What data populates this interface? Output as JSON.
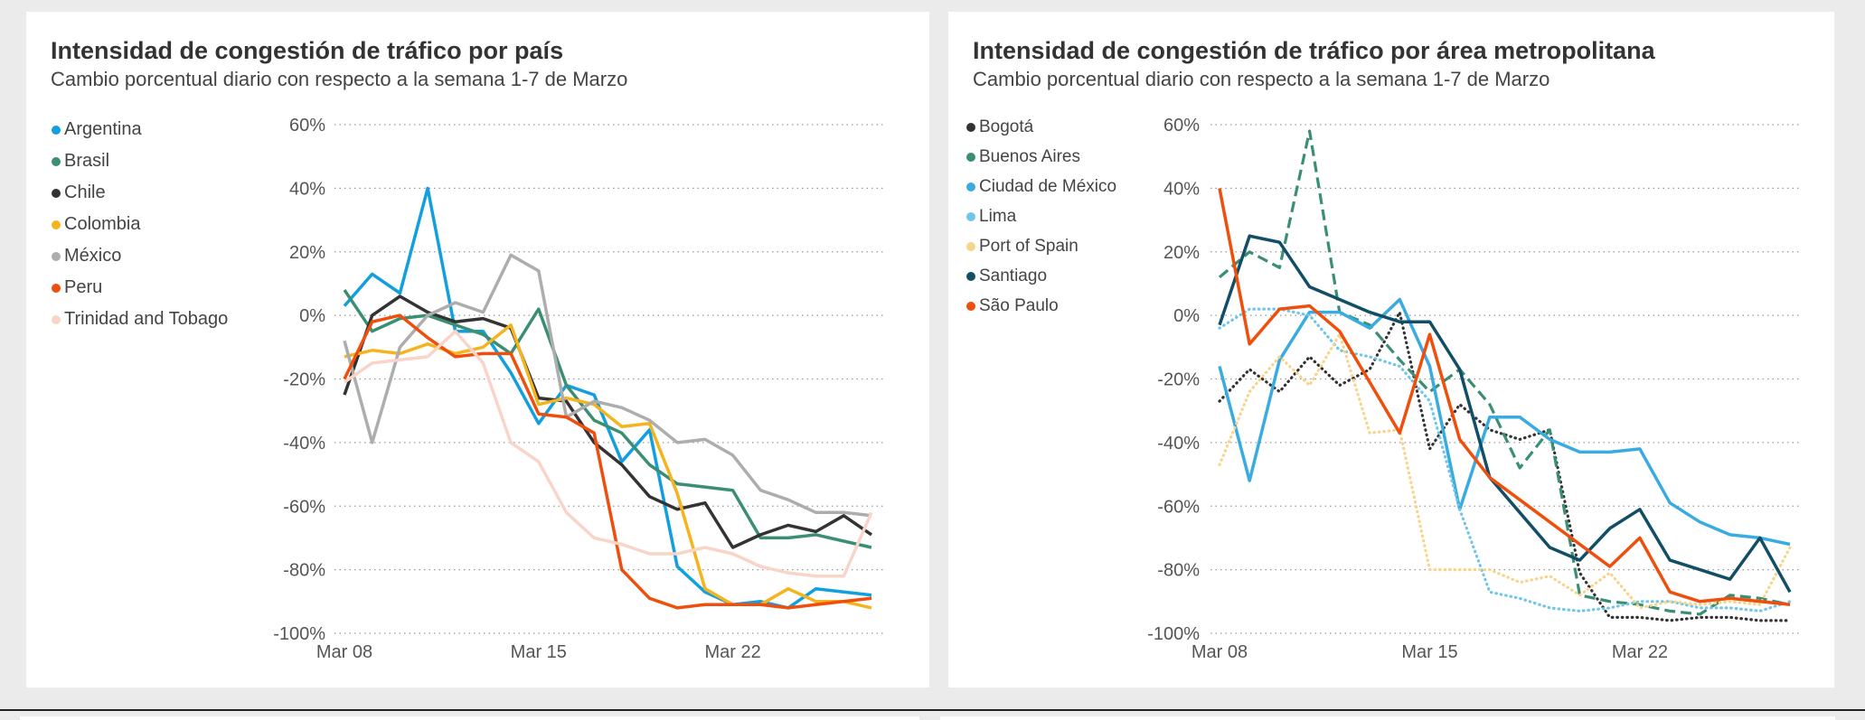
{
  "chart_data": [
    {
      "type": "line",
      "title": "Intensidad de congestión de tráfico por país",
      "subtitle": "Cambio porcentual diario con respecto a la semana 1-7 de Marzo",
      "x": [
        "Mar 08",
        "Mar 09",
        "Mar 10",
        "Mar 11",
        "Mar 12",
        "Mar 13",
        "Mar 14",
        "Mar 15",
        "Mar 16",
        "Mar 17",
        "Mar 18",
        "Mar 19",
        "Mar 20",
        "Mar 21",
        "Mar 22",
        "Mar 23",
        "Mar 24",
        "Mar 25",
        "Mar 26",
        "Mar 27"
      ],
      "x_ticks": [
        "Mar 08",
        "Mar 15",
        "Mar 22"
      ],
      "y_ticks": [
        "60%",
        "40%",
        "20%",
        "0%",
        "-20%",
        "-40%",
        "-60%",
        "-80%",
        "-100%"
      ],
      "ylim": [
        -100,
        60
      ],
      "grid": "horizontal dotted",
      "legend": "left",
      "series": [
        {
          "name": "Argentina",
          "color": "#129fe0",
          "style": "solid",
          "values": [
            3,
            13,
            7,
            40,
            -5,
            -5,
            -18,
            -34,
            -22,
            -25,
            -46,
            -36,
            -79,
            -87,
            -91,
            -90,
            -92,
            -86,
            -87,
            -88
          ]
        },
        {
          "name": "Brasil",
          "color": "#3a8f73",
          "style": "solid",
          "values": [
            8,
            -5,
            -1,
            0,
            -3,
            -6,
            -12,
            2,
            -22,
            -33,
            -37,
            -47,
            -53,
            -54,
            -55,
            -70,
            -70,
            -69,
            -71,
            -73
          ]
        },
        {
          "name": "Chile",
          "color": "#333333",
          "style": "solid",
          "values": [
            -25,
            0,
            6,
            1,
            -2,
            -1,
            -4,
            -26,
            -27,
            -40,
            -47,
            -57,
            -61,
            -59,
            -73,
            -69,
            -66,
            -68,
            -63,
            -69
          ]
        },
        {
          "name": "Colombia",
          "color": "#f5b41e",
          "style": "solid",
          "values": [
            -13,
            -11,
            -12,
            -9,
            -12,
            -10,
            -3,
            -28,
            -26,
            -28,
            -35,
            -34,
            -56,
            -86,
            -91,
            -91,
            -86,
            -90,
            -90,
            -92
          ]
        },
        {
          "name": "México",
          "color": "#adadad",
          "style": "solid",
          "values": [
            -8,
            -40,
            -10,
            0,
            4,
            1,
            19,
            14,
            -32,
            -27,
            -29,
            -33,
            -40,
            -39,
            -44,
            -55,
            -58,
            -62,
            -62,
            -63
          ]
        },
        {
          "name": "Peru",
          "color": "#f04e0c",
          "style": "solid",
          "values": [
            -20,
            -2,
            0,
            -7,
            -13,
            -12,
            -12,
            -31,
            -32,
            -37,
            -80,
            -89,
            -92,
            -91,
            -91,
            -91,
            -92,
            -91,
            -90,
            -89
          ]
        },
        {
          "name": "Trinidad and Tobago",
          "color": "#f9d4c8",
          "style": "solid",
          "values": [
            -21,
            -15,
            -14,
            -13,
            -5,
            -15,
            -40,
            -46,
            -62,
            -70,
            -72,
            -75,
            -75,
            -73,
            -75,
            -79,
            -81,
            -82,
            -82,
            -62
          ]
        }
      ]
    },
    {
      "type": "line",
      "title": "Intensidad de congestión de tráfico por área metropolitana",
      "subtitle": "Cambio porcentual diario con respecto a la semana 1-7 de Marzo",
      "x": [
        "Mar 08",
        "Mar 09",
        "Mar 10",
        "Mar 11",
        "Mar 12",
        "Mar 13",
        "Mar 14",
        "Mar 15",
        "Mar 16",
        "Mar 17",
        "Mar 18",
        "Mar 19",
        "Mar 20",
        "Mar 21",
        "Mar 22",
        "Mar 23",
        "Mar 24",
        "Mar 25",
        "Mar 26",
        "Mar 27"
      ],
      "x_ticks": [
        "Mar 08",
        "Mar 15",
        "Mar 22"
      ],
      "y_ticks": [
        "60%",
        "40%",
        "20%",
        "0%",
        "-20%",
        "-40%",
        "-60%",
        "-80%",
        "-100%"
      ],
      "ylim": [
        -100,
        60
      ],
      "grid": "horizontal dotted",
      "legend": "left",
      "series": [
        {
          "name": "Bogotá",
          "color": "#333333",
          "style": "dotted",
          "values": [
            -27,
            -17,
            -24,
            -13,
            -22,
            -17,
            1,
            -42,
            -28,
            -36,
            -39,
            -36,
            -81,
            -95,
            -95,
            -96,
            -95,
            -95,
            -96,
            -96
          ]
        },
        {
          "name": "Buenos Aires",
          "color": "#3a8f73",
          "style": "dashed",
          "values": [
            12,
            20,
            15,
            58,
            1,
            -3,
            -14,
            -24,
            -17,
            -28,
            -48,
            -36,
            -88,
            -90,
            -91,
            -93,
            -94,
            -88,
            -89,
            -91
          ]
        },
        {
          "name": "Ciudad de México",
          "color": "#39abe1",
          "style": "solid",
          "values": [
            -16,
            -52,
            -14,
            1,
            1,
            -4,
            5,
            -16,
            -61,
            -32,
            -32,
            -39,
            -43,
            -43,
            -42,
            -59,
            -65,
            -69,
            -70,
            -72
          ]
        },
        {
          "name": "Lima",
          "color": "#6ec6ea",
          "style": "dotted",
          "values": [
            -4,
            2,
            2,
            0,
            -11,
            -13,
            -16,
            -27,
            -61,
            -87,
            -89,
            -92,
            -93,
            -92,
            -90,
            -90,
            -92,
            -92,
            -93,
            -90
          ]
        },
        {
          "name": "Port of Spain",
          "color": "#f8d48a",
          "style": "dotted",
          "values": [
            -47,
            -24,
            -13,
            -22,
            -6,
            -37,
            -36,
            -80,
            -80,
            -80,
            -84,
            -82,
            -88,
            -81,
            -92,
            -90,
            -91,
            -90,
            -91,
            -73
          ]
        },
        {
          "name": "Santiago",
          "color": "#124e66",
          "style": "solid",
          "values": [
            -3,
            25,
            23,
            9,
            5,
            1,
            -2,
            -2,
            -17,
            -51,
            -62,
            -73,
            -77,
            -67,
            -61,
            -77,
            -80,
            -83,
            -70,
            -87
          ]
        },
        {
          "name": "São Paulo",
          "color": "#f04e0c",
          "style": "solid",
          "values": [
            40,
            -9,
            2,
            3,
            -5,
            -21,
            -37,
            -6,
            -39,
            -51,
            -58,
            -65,
            -72,
            -79,
            -70,
            -87,
            -90,
            -89,
            -90,
            -91
          ]
        }
      ]
    }
  ]
}
